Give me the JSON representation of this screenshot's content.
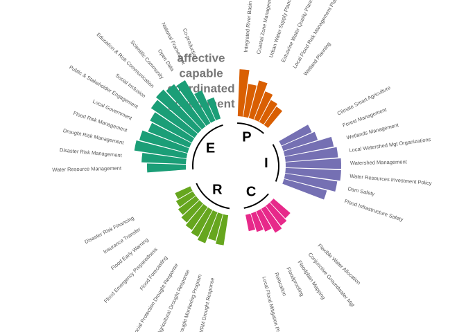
{
  "chart_data": {
    "type": "radial_bar",
    "annotation_lines": [
      "affective",
      "capable",
      "coordinated",
      "government"
    ],
    "series": [
      {
        "name": "P",
        "color": "#d95f02",
        "categories": [
          "Integrated River Basin Planning",
          "Coastal Zone Management Planning",
          "Urban Water Supply Planning",
          "Estuarine Water Quality Planning",
          "Local Flood Risk Management Planning",
          "Wetland Planning"
        ],
        "values": [
          85,
          60,
          70,
          55,
          45,
          40
        ]
      },
      {
        "name": "I",
        "color": "#7570b3",
        "categories": [
          "Climate Smart Agriculture",
          "Forest Management",
          "Wetlands Management",
          "Local Watershed Mgt Organizations",
          "Watershed Management",
          "Water Resources Investment Policy",
          "Dam Safety",
          "Flood Infrastructure Safety"
        ],
        "values": [
          60,
          65,
          90,
          95,
          100,
          100,
          95,
          80
        ]
      },
      {
        "name": "C",
        "color": "#e7298a",
        "categories": [
          "Flexible Water Allocation",
          "Conjunctive Groundwater Mgt",
          "Floodplain Mapping",
          "Floodproofing",
          "Relocation",
          "Local Flood Mitigation Planning"
        ],
        "values": [
          40,
          45,
          50,
          40,
          35,
          30
        ]
      },
      {
        "name": "R",
        "color": "#66a61e",
        "categories": [
          "WRM Drought Response",
          "Drought Monitoring Program",
          "Agricultural Drought Response",
          "Social Protection Drought Response",
          "Flood Forecasting",
          "Flood Emergency Preparedness",
          "Flood Early Warning",
          "Insurance Transfer",
          "Disaster Risk Financing"
        ],
        "values": [
          55,
          50,
          60,
          55,
          50,
          45,
          40,
          35,
          30
        ]
      },
      {
        "name": "E",
        "color": "#1b9e77",
        "categories": [
          "Water Resource Management",
          "Disaster Risk Management",
          "Drought Risk Management",
          "Flood Risk Management",
          "Local Government",
          "Public & Stakeholder Engagement",
          "Social Inclusion",
          "Education & Risk Communication",
          "Scientific Community",
          "Open Data",
          "National Framework",
          "Co-production"
        ],
        "values": [
          70,
          80,
          95,
          90,
          80,
          85,
          95,
          100,
          95,
          90,
          60,
          40
        ]
      }
    ]
  }
}
